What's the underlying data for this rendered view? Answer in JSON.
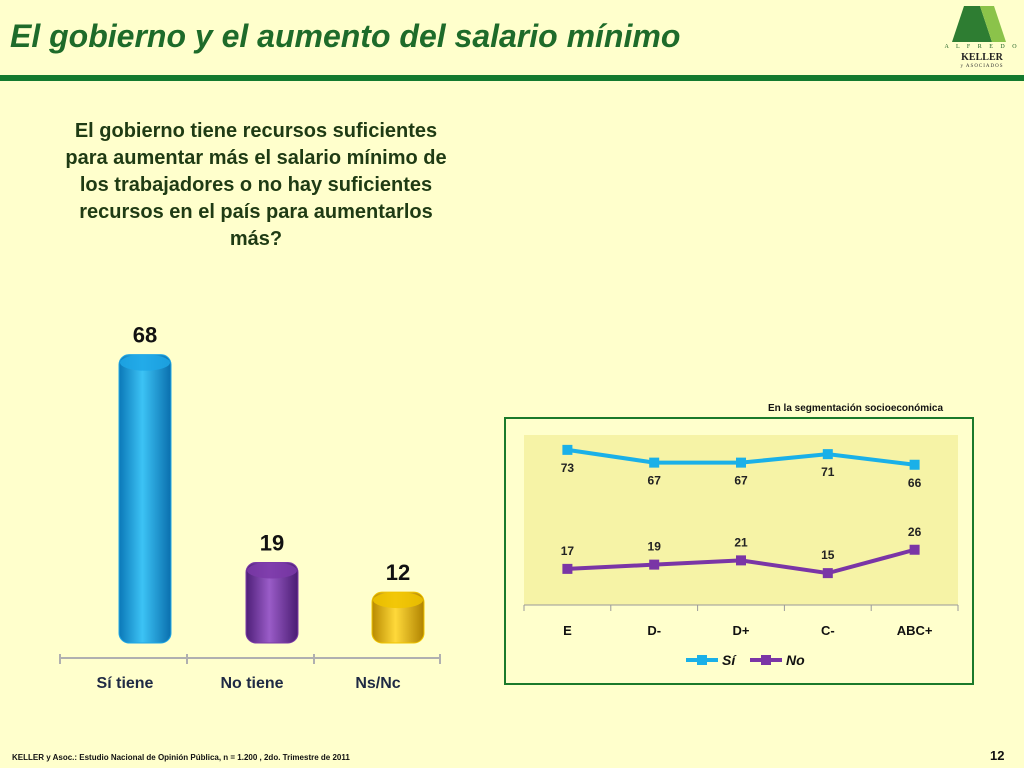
{
  "slide": {
    "title": "El gobierno y el aumento del salario mínimo",
    "question": "El gobierno tiene recursos suficientes para aumentar más el salario mínimo de los trabajadores o no hay suficientes recursos en el país para aumentarlos más?",
    "segment_caption": "En la segmentación socioeconómica",
    "footer": "KELLER y Asoc.: Estudio Nacional de Opinión Pública, n = 1.200 , 2do. Trimestre de 2011",
    "page_number": "12"
  },
  "logo": {
    "top": "A L F R E D O",
    "name": "KELLER",
    "sub": "y ASOCIADOS"
  },
  "chart_data": [
    {
      "type": "bar",
      "categories": [
        "Sí tiene",
        "No tiene",
        "Ns/Nc"
      ],
      "values": [
        68,
        19,
        12
      ],
      "colors": [
        "#1fa7e6",
        "#7b3aa8",
        "#f0c400"
      ],
      "ylim": [
        0,
        75
      ]
    },
    {
      "type": "line",
      "x": [
        "E",
        "D-",
        "D+",
        "C-",
        "ABC+"
      ],
      "ylim": [
        0,
        80
      ],
      "series": [
        {
          "name": "Sí",
          "values": [
            73,
            67,
            67,
            71,
            66
          ],
          "color": "#1ab0e8"
        },
        {
          "name": "No",
          "values": [
            17,
            19,
            21,
            15,
            26
          ],
          "color": "#7a35a6"
        }
      ],
      "legend": "bottom"
    }
  ]
}
